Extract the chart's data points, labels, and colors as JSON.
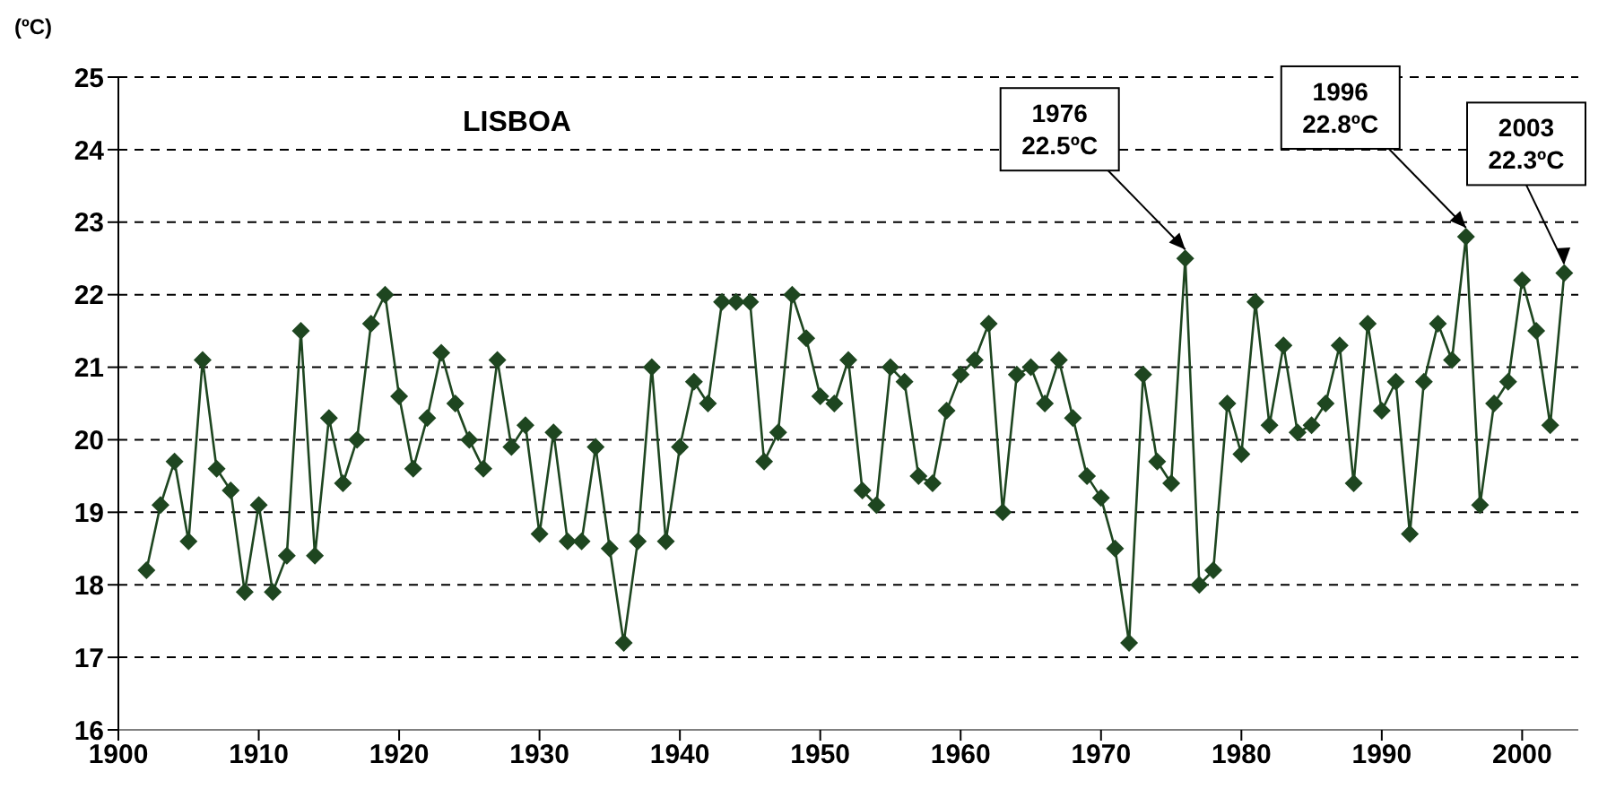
{
  "chart_data": {
    "type": "line",
    "title": "LISBOA",
    "ylabel": "(ºC)",
    "x": [
      1902,
      1903,
      1904,
      1905,
      1906,
      1907,
      1908,
      1909,
      1910,
      1911,
      1912,
      1913,
      1914,
      1915,
      1916,
      1917,
      1918,
      1919,
      1920,
      1921,
      1922,
      1923,
      1924,
      1925,
      1926,
      1927,
      1928,
      1929,
      1930,
      1931,
      1932,
      1933,
      1934,
      1935,
      1936,
      1937,
      1938,
      1939,
      1940,
      1941,
      1942,
      1943,
      1944,
      1945,
      1946,
      1947,
      1948,
      1949,
      1950,
      1951,
      1952,
      1953,
      1954,
      1955,
      1956,
      1957,
      1958,
      1959,
      1960,
      1961,
      1962,
      1963,
      1964,
      1965,
      1966,
      1967,
      1968,
      1969,
      1970,
      1971,
      1972,
      1973,
      1974,
      1975,
      1976,
      1977,
      1978,
      1979,
      1980,
      1981,
      1982,
      1983,
      1984,
      1985,
      1986,
      1987,
      1988,
      1989,
      1990,
      1991,
      1992,
      1993,
      1994,
      1995,
      1996,
      1997,
      1998,
      1999,
      2000,
      2001,
      2002,
      2003
    ],
    "series": [
      {
        "color": "#1e4620",
        "values": [
          18.2,
          19.1,
          19.7,
          18.6,
          21.1,
          19.6,
          19.3,
          17.9,
          19.1,
          17.9,
          18.4,
          21.5,
          18.4,
          20.3,
          19.4,
          20.0,
          21.6,
          22.0,
          20.6,
          19.6,
          20.3,
          21.2,
          20.5,
          20.0,
          19.6,
          21.1,
          19.9,
          20.2,
          18.7,
          20.1,
          18.6,
          18.6,
          19.9,
          18.5,
          17.2,
          18.6,
          21.0,
          18.6,
          19.9,
          20.8,
          20.5,
          21.9,
          21.9,
          21.9,
          19.7,
          20.1,
          22.0,
          21.4,
          20.6,
          20.5,
          21.1,
          19.3,
          19.1,
          21.0,
          20.8,
          19.5,
          19.4,
          20.4,
          20.9,
          21.1,
          21.6,
          19.0,
          20.9,
          21.0,
          20.5,
          21.1,
          20.3,
          19.5,
          19.2,
          18.5,
          17.2,
          20.9,
          19.7,
          19.4,
          22.5,
          18.0,
          18.2,
          20.5,
          19.8,
          21.9,
          20.2,
          21.3,
          20.1,
          20.2,
          20.5,
          21.3,
          19.4,
          21.6,
          20.4,
          20.8,
          18.7,
          20.8,
          21.6,
          21.1,
          22.8,
          19.1,
          20.5,
          20.8,
          22.2,
          21.5,
          20.2,
          22.3
        ]
      }
    ],
    "xlim": [
      1900,
      2004
    ],
    "xticks": [
      1900,
      1910,
      1920,
      1930,
      1940,
      1950,
      1960,
      1970,
      1980,
      1990,
      2000
    ],
    "ylim": [
      16,
      25
    ],
    "yticks": [
      16,
      17,
      18,
      19,
      20,
      21,
      22,
      23,
      24,
      25
    ],
    "grid": "y",
    "marker": "diamond",
    "line_style": "solid",
    "legend": false,
    "annotations": [
      {
        "text": "1976\n22.5ºC",
        "x": 1976,
        "y": 22.5
      },
      {
        "text": "1996\n22.8ºC",
        "x": 1996,
        "y": 22.8
      },
      {
        "text": "2003\n22.3ºC",
        "x": 2003,
        "y": 22.3
      }
    ]
  }
}
